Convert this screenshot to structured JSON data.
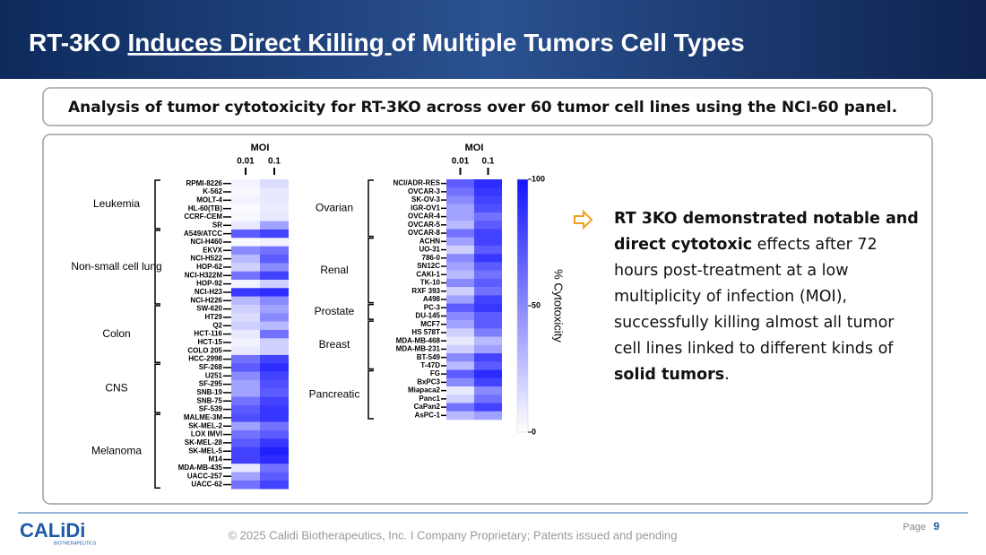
{
  "header": {
    "title": {
      "before": "RT-3KO ",
      "underlined": "Induces Direct Killing ",
      "after": "of Multiple Tumors Cell Types"
    },
    "subtitle": "Analysis of tumor cytotoxicity for RT-3KO across over 60 tumor cell lines using the NCI-60 panel."
  },
  "heatmaps": [
    {
      "moi_label": "MOI",
      "columns": [
        "0.01",
        "0.1"
      ],
      "groups": [
        {
          "name": "Leukemia",
          "rows": [
            {
              "label": "RPMI-8226",
              "values": [
                5,
                15
              ]
            },
            {
              "label": "K-562",
              "values": [
                3,
                10
              ]
            },
            {
              "label": "MOLT-4",
              "values": [
                5,
                10
              ]
            },
            {
              "label": "HL-60(TB)",
              "values": [
                2,
                8
              ]
            },
            {
              "label": "CCRF-CEM",
              "values": [
                3,
                10
              ]
            },
            {
              "label": "SR",
              "values": [
                10,
                40
              ]
            }
          ]
        },
        {
          "name": "Non-small cell lung",
          "rows": [
            {
              "label": "A549/ATCC",
              "values": [
                70,
                80
              ]
            },
            {
              "label": "NCI-H460",
              "values": [
                3,
                5
              ]
            },
            {
              "label": "EKVX",
              "values": [
                50,
                60
              ]
            },
            {
              "label": "NCI-H522",
              "values": [
                30,
                70
              ]
            },
            {
              "label": "HOP-62",
              "values": [
                20,
                50
              ]
            },
            {
              "label": "NCI-H322M",
              "values": [
                60,
                80
              ]
            },
            {
              "label": "HOP-92",
              "values": [
                5,
                20
              ]
            },
            {
              "label": "NCI-H23",
              "values": [
                85,
                90
              ]
            },
            {
              "label": "NCI-H226",
              "values": [
                30,
                50
              ]
            }
          ]
        },
        {
          "name": "Colon",
          "rows": [
            {
              "label": "SW-620",
              "values": [
                20,
                40
              ]
            },
            {
              "label": "HT29",
              "values": [
                15,
                50
              ]
            },
            {
              "label": "Q2",
              "values": [
                20,
                30
              ]
            },
            {
              "label": "HCT-116",
              "values": [
                10,
                60
              ]
            },
            {
              "label": "HCT-15",
              "values": [
                5,
                20
              ]
            },
            {
              "label": "COLO 205",
              "values": [
                10,
                20
              ]
            },
            {
              "label": "HCC-2998",
              "values": [
                60,
                80
              ]
            }
          ]
        },
        {
          "name": "CNS",
          "rows": [
            {
              "label": "SF-268",
              "values": [
                70,
                90
              ]
            },
            {
              "label": "U251",
              "values": [
                50,
                80
              ]
            },
            {
              "label": "SF-295",
              "values": [
                40,
                75
              ]
            },
            {
              "label": "SNB-19",
              "values": [
                40,
                70
              ]
            },
            {
              "label": "SNB-75",
              "values": [
                60,
                80
              ]
            },
            {
              "label": "SF-539",
              "values": [
                70,
                85
              ]
            }
          ]
        },
        {
          "name": "Melanoma",
          "rows": [
            {
              "label": "MALME-3M",
              "values": [
                75,
                85
              ]
            },
            {
              "label": "SK-MEL-2",
              "values": [
                40,
                60
              ]
            },
            {
              "label": "LOX IMVI",
              "values": [
                60,
                70
              ]
            },
            {
              "label": "SK-MEL-28",
              "values": [
                70,
                85
              ]
            },
            {
              "label": "SK-MEL-5",
              "values": [
                80,
                95
              ]
            },
            {
              "label": "M14",
              "values": [
                80,
                90
              ]
            },
            {
              "label": "MDA-MB-435",
              "values": [
                10,
                60
              ]
            },
            {
              "label": "UACC-257",
              "values": [
                40,
                70
              ]
            },
            {
              "label": "UACC-62",
              "values": [
                60,
                80
              ]
            }
          ]
        }
      ]
    },
    {
      "moi_label": "MOI",
      "columns": [
        "0.01",
        "0.1"
      ],
      "groups": [
        {
          "name": "Ovarian",
          "rows": [
            {
              "label": "NCI/ADR-RES",
              "values": [
                70,
                90
              ]
            },
            {
              "label": "OVCAR-3",
              "values": [
                60,
                85
              ]
            },
            {
              "label": "SK-OV-3",
              "values": [
                50,
                80
              ]
            },
            {
              "label": "IGR-OV1",
              "values": [
                40,
                75
              ]
            },
            {
              "label": "OVCAR-4",
              "values": [
                40,
                60
              ]
            },
            {
              "label": "OVCAR-5",
              "values": [
                30,
                70
              ]
            },
            {
              "label": "OVCAR-8",
              "values": [
                60,
                80
              ]
            }
          ]
        },
        {
          "name": "Renal",
          "rows": [
            {
              "label": "ACHN",
              "values": [
                40,
                80
              ]
            },
            {
              "label": "UO-31",
              "values": [
                20,
                70
              ]
            },
            {
              "label": "786-0",
              "values": [
                50,
                85
              ]
            },
            {
              "label": "SN12C",
              "values": [
                40,
                70
              ]
            },
            {
              "label": "CAKI-1",
              "values": [
                30,
                60
              ]
            },
            {
              "label": "TK-10",
              "values": [
                50,
                70
              ]
            },
            {
              "label": "RXF 393",
              "values": [
                20,
                60
              ]
            },
            {
              "label": "A498",
              "values": [
                40,
                80
              ]
            }
          ]
        },
        {
          "name": "Prostate",
          "rows": [
            {
              "label": "PC-3",
              "values": [
                70,
                85
              ]
            },
            {
              "label": "DU-145",
              "values": [
                50,
                70
              ]
            }
          ]
        },
        {
          "name": "Breast",
          "rows": [
            {
              "label": "MCF7",
              "values": [
                40,
                70
              ]
            },
            {
              "label": "HS 578T",
              "values": [
                20,
                55
              ]
            },
            {
              "label": "MDA-MB-468",
              "values": [
                10,
                30
              ]
            },
            {
              "label": "MDA-MB-231",
              "values": [
                20,
                40
              ]
            },
            {
              "label": "BT-549",
              "values": [
                50,
                80
              ]
            },
            {
              "label": "T-47D",
              "values": [
                30,
                70
              ]
            }
          ]
        },
        {
          "name": "Pancreatic",
          "rows": [
            {
              "label": "FG",
              "values": [
                70,
                90
              ]
            },
            {
              "label": "BxPC3",
              "values": [
                50,
                80
              ]
            },
            {
              "label": "Miapaca2",
              "values": [
                10,
                50
              ]
            },
            {
              "label": "Panc1",
              "values": [
                20,
                60
              ]
            },
            {
              "label": "CaPan2",
              "values": [
                60,
                80
              ]
            },
            {
              "label": "AsPC-1",
              "values": [
                30,
                40
              ]
            }
          ]
        }
      ]
    }
  ],
  "colorbar": {
    "label": "% Cytotoxicity",
    "range": [
      0,
      100
    ],
    "ticks": [
      0,
      50,
      100
    ],
    "low_color": "#ffffff",
    "high_color": "#1414ff"
  },
  "bullet": [
    {
      "text": "RT 3KO demonstrated notable and direct cytotoxic",
      "bold": true
    },
    {
      "text": " effects after 72 hours post-treatment at a low multiplicity of infection (MOI), successfully killing almost all tumor cell lines linked to different kinds of ",
      "bold": false
    },
    {
      "text": "solid tumors",
      "bold": true
    },
    {
      "text": ".",
      "bold": false
    }
  ],
  "footer": {
    "copyright": "© 2025 Calidi Biotherapeutics, Inc. I  Company Proprietary; Patents issued and pending",
    "page_label": "Page",
    "page_number": "9",
    "logo": "CALiDi",
    "logo_sub": "BIOTHERAPEUTICS"
  }
}
